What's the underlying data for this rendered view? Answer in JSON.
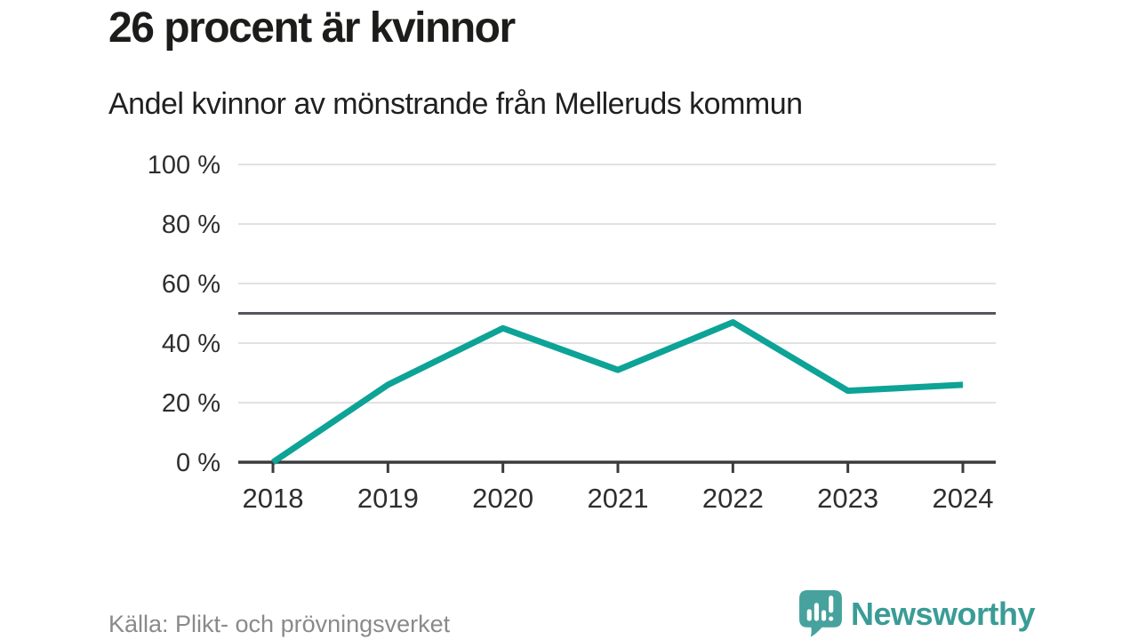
{
  "title": "26 procent är kvinnor",
  "subtitle": "Andel kvinnor av mönstrande från Melleruds kommun",
  "source": "Källa: Plikt- och prövningsverket",
  "brand": {
    "name": "Newsworthy",
    "icon": "newsworthy-speech-bubble-chart-icon",
    "icon_color": "#47a29d",
    "text_color": "#3a9c96"
  },
  "colors": {
    "line": "#0da396",
    "grid": "#e2e2e2",
    "reference_line": "#55555f",
    "axis": "#3b3b3b",
    "tick_text": "#2e2e2e",
    "muted_text": "#8a8a8a"
  },
  "chart_data": {
    "type": "line",
    "title": "Andel kvinnor av mönstrande från Melleruds kommun",
    "x": [
      "2018",
      "2019",
      "2020",
      "2021",
      "2022",
      "2023",
      "2024"
    ],
    "series": [
      {
        "name": "Andel kvinnor av mönstrande (%)",
        "color": "#0da396",
        "values": [
          0,
          26,
          45,
          31,
          47,
          24,
          26
        ]
      }
    ],
    "xlabel": "",
    "ylabel": "",
    "ylim": [
      0,
      100
    ],
    "yticks": [
      0,
      20,
      40,
      60,
      80,
      100
    ],
    "ytick_labels": [
      "0 %",
      "20 %",
      "40 %",
      "60 %",
      "80 %",
      "100 %"
    ],
    "reference_line": 50,
    "grid": true,
    "legend": false
  }
}
